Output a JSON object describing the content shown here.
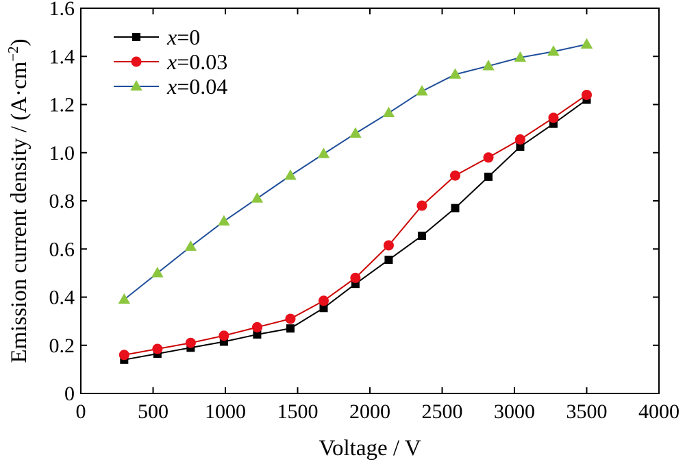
{
  "chart_data": {
    "type": "line",
    "xlabel": "Voltage / V",
    "ylabel": {
      "prefix": "Emission current density / (A·cm",
      "superscript": "−2",
      "suffix": ")"
    },
    "xlim": [
      0,
      4000
    ],
    "ylim": [
      0,
      1.6
    ],
    "xticks": [
      "0",
      "500",
      "1000",
      "1500",
      "2000",
      "2500",
      "3000",
      "3500",
      "4000"
    ],
    "yticks": [
      "0",
      "0.2",
      "0.4",
      "0.6",
      "0.8",
      "1.0",
      "1.2",
      "1.4",
      "1.6"
    ],
    "grid": false,
    "legend_position": "top-left",
    "series": [
      {
        "name": "x=0",
        "legend_var": "x",
        "legend_rest": "=0",
        "line_color": "#000000",
        "marker_color": "#000000",
        "marker": "square",
        "x": [
          300,
          530,
          760,
          990,
          1220,
          1450,
          1680,
          1900,
          2130,
          2360,
          2590,
          2820,
          3040,
          3270,
          3500
        ],
        "y": [
          0.14,
          0.165,
          0.19,
          0.215,
          0.245,
          0.27,
          0.355,
          0.455,
          0.555,
          0.655,
          0.77,
          0.9,
          1.025,
          1.12,
          1.22
        ]
      },
      {
        "name": "x=0.03",
        "legend_var": "x",
        "legend_rest": "=0.03",
        "line_color": "#cc0000",
        "marker_color": "#e8101a",
        "marker": "circle",
        "x": [
          300,
          530,
          760,
          990,
          1220,
          1450,
          1680,
          1900,
          2130,
          2360,
          2590,
          2820,
          3040,
          3270,
          3500
        ],
        "y": [
          0.16,
          0.185,
          0.21,
          0.24,
          0.275,
          0.31,
          0.385,
          0.48,
          0.615,
          0.78,
          0.905,
          0.98,
          1.055,
          1.145,
          1.24
        ]
      },
      {
        "name": "x=0.04",
        "legend_var": "x",
        "legend_rest": "=0.04",
        "line_color": "#1f4e9a",
        "marker_color": "#8cc63f",
        "marker": "triangle",
        "x": [
          300,
          530,
          760,
          990,
          1220,
          1450,
          1680,
          1900,
          2130,
          2360,
          2590,
          2820,
          3040,
          3270,
          3500
        ],
        "y": [
          0.39,
          0.5,
          0.61,
          0.715,
          0.81,
          0.905,
          0.995,
          1.08,
          1.165,
          1.255,
          1.325,
          1.36,
          1.395,
          1.42,
          1.45
        ]
      }
    ]
  }
}
